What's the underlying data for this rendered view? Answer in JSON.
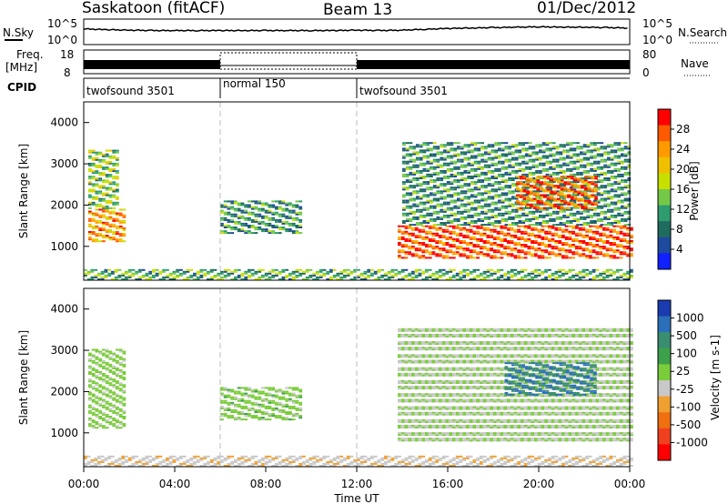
{
  "header": {
    "station": "Saskatoon (fitACF)",
    "beam": "Beam 13",
    "date": "01/Dec/2012"
  },
  "noise_panel": {
    "left_label": "N.Sky",
    "left_ticks": [
      "10^5",
      "10^0"
    ],
    "right_label": "N.Search",
    "right_ticks": [
      "10^5",
      "10^0"
    ]
  },
  "freq_panel": {
    "left_label_1": "Freq.",
    "left_label_2": "[MHz]",
    "left_ticks": [
      "18",
      "8"
    ],
    "right_label": "Nave",
    "right_ticks": [
      "80",
      "0"
    ]
  },
  "cpid_panel": {
    "label": "CPID",
    "segments": [
      {
        "name": "twofsound 3501",
        "start_h": 0,
        "end_h": 6
      },
      {
        "name": "normal 150",
        "start_h": 6,
        "end_h": 12
      },
      {
        "name": "twofsound 3501",
        "start_h": 12,
        "end_h": 24
      }
    ]
  },
  "x_axis": {
    "label": "Time UT",
    "ticks": [
      "00:00",
      "04:00",
      "08:00",
      "12:00",
      "16:00",
      "20:00",
      "00:00"
    ],
    "range_h": [
      0,
      24
    ]
  },
  "y_axis": {
    "label": "Slant Range [km]",
    "ticks": [
      "1000",
      "2000",
      "3000",
      "4000"
    ],
    "range_km": [
      180,
      4500
    ]
  },
  "colorbars": {
    "power": {
      "label": "Power [dB]",
      "ticks": [
        "28",
        "24",
        "20",
        "16",
        "12",
        "8",
        "4"
      ],
      "colors": [
        "#ff0000",
        "#ff5a00",
        "#ff9a00",
        "#f0c000",
        "#c8e000",
        "#74c848",
        "#2e9c6e",
        "#1f6b5e",
        "#1e4aa0",
        "#1020ff"
      ]
    },
    "velocity": {
      "label": "Velocity [m s-1]",
      "ticks": [
        "1000",
        "500",
        "100",
        "25",
        "-25",
        "-100",
        "-500",
        "-1000"
      ],
      "colors": [
        "#1a3cb0",
        "#2a6fb8",
        "#3a8e70",
        "#3da04a",
        "#7acc3a",
        "#c8c8c8",
        "#f0a030",
        "#f07010",
        "#f04020",
        "#ff0000"
      ]
    }
  },
  "chart_data": [
    {
      "type": "line",
      "title": "N.Sky / N.Search",
      "x": [
        0,
        1,
        2,
        3,
        4,
        5,
        6,
        7,
        8,
        9,
        10,
        11,
        12,
        13,
        14,
        15,
        16,
        17,
        18,
        19,
        20,
        21,
        22,
        23,
        24
      ],
      "series": [
        {
          "name": "N.Sky",
          "values": [
            3.2,
            3.0,
            2.9,
            2.8,
            2.8,
            2.8,
            2.8,
            2.8,
            2.8,
            2.8,
            2.8,
            2.8,
            2.9,
            2.8,
            2.9,
            3.1,
            3.3,
            3.4,
            3.5,
            3.6,
            3.7,
            3.6,
            3.6,
            3.5,
            3.4
          ]
        }
      ],
      "ylim": [
        0,
        5
      ]
    },
    {
      "type": "heatmap",
      "title": "Power [dB]",
      "xlabel": "Time UT",
      "ylabel": "Slant Range [km]",
      "xlim": [
        0,
        24
      ],
      "ylim": [
        180,
        4500
      ],
      "zlim": [
        0,
        30
      ],
      "regions": [
        {
          "t0": 0.2,
          "t1": 1.8,
          "r0": 1100,
          "r1": 1900,
          "value": 22
        },
        {
          "t0": 0.2,
          "t1": 1.5,
          "r0": 1900,
          "r1": 3300,
          "value": 14
        },
        {
          "t0": 6.0,
          "t1": 9.5,
          "r0": 1300,
          "r1": 2100,
          "value": 10
        },
        {
          "t0": 0.0,
          "t1": 24.0,
          "r0": 180,
          "r1": 450,
          "value": 12
        },
        {
          "t0": 13.8,
          "t1": 24.0,
          "r0": 700,
          "r1": 1500,
          "value": 26
        },
        {
          "t0": 14.0,
          "t1": 24.0,
          "r0": 1500,
          "r1": 3500,
          "value": 10
        },
        {
          "t0": 19.0,
          "t1": 22.5,
          "r0": 1900,
          "r1": 2700,
          "value": 25
        }
      ]
    },
    {
      "type": "heatmap",
      "title": "Velocity [m s-1]",
      "xlabel": "Time UT",
      "ylabel": "Slant Range [km]",
      "xlim": [
        0,
        24
      ],
      "ylim": [
        180,
        4500
      ],
      "zlim": [
        -1000,
        1000
      ],
      "regions": [
        {
          "t0": 0.2,
          "t1": 1.8,
          "r0": 1100,
          "r1": 3000,
          "value": 80
        },
        {
          "t0": 6.0,
          "t1": 9.5,
          "r0": 1300,
          "r1": 2100,
          "value": 90
        },
        {
          "t0": 0.0,
          "t1": 24.0,
          "r0": 180,
          "r1": 450,
          "value": -150
        },
        {
          "t0": 13.8,
          "t1": 24.0,
          "r0": 700,
          "r1": 3500,
          "value": 0
        },
        {
          "t0": 18.5,
          "t1": 22.5,
          "r0": 1900,
          "r1": 2700,
          "value": 600
        }
      ]
    }
  ]
}
